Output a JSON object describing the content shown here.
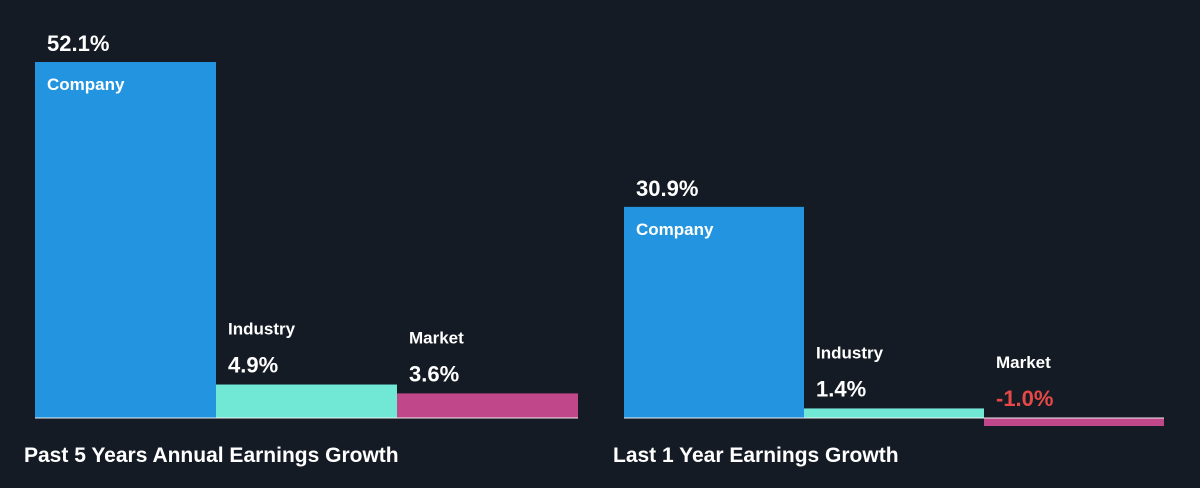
{
  "colors": {
    "background": "#151b24",
    "company": "#2394df",
    "industry": "#71e7d6",
    "market": "#c0478a",
    "text": "#ffffff",
    "negative": "#e64848",
    "baseline": "#ffffff"
  },
  "chart_data": [
    {
      "type": "bar",
      "title": "Past 5 Years Annual Earnings Growth",
      "categories": [
        "Company",
        "Industry",
        "Market"
      ],
      "values": [
        52.1,
        4.9,
        3.6
      ],
      "value_labels": [
        "52.1%",
        "4.9%",
        "3.6%"
      ],
      "unit": "%",
      "ylim": [
        0,
        52.1
      ],
      "grid": false,
      "legend": "none"
    },
    {
      "type": "bar",
      "title": "Last 1 Year Earnings Growth",
      "categories": [
        "Company",
        "Industry",
        "Market"
      ],
      "values": [
        30.9,
        1.4,
        -1.0
      ],
      "value_labels": [
        "30.9%",
        "1.4%",
        "-1.0%"
      ],
      "unit": "%",
      "ylim": [
        0,
        52.1
      ],
      "grid": false,
      "legend": "none"
    }
  ]
}
